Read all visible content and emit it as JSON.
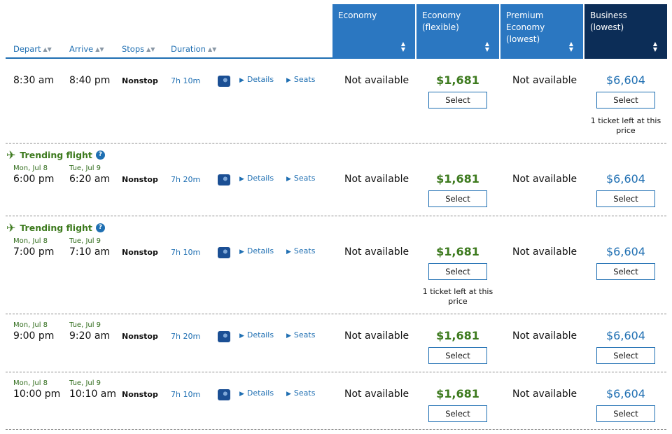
{
  "columns": {
    "depart": "Depart",
    "arrive": "Arrive",
    "stops": "Stops",
    "duration": "Duration"
  },
  "cabins": [
    {
      "label": "Economy"
    },
    {
      "label": "Economy (flexible)"
    },
    {
      "label": "Premium Economy (lowest)"
    },
    {
      "label": "Business (lowest)"
    }
  ],
  "trending_label": "Trending flight",
  "details_label": "Details",
  "seats_label": "Seats",
  "select_label": "Select",
  "not_available": "Not available",
  "flights": [
    {
      "depart_date": "",
      "depart": "8:30 am",
      "arrive_date": "",
      "arrive": "8:40 pm",
      "stops": "Nonstop",
      "duration": "7h 10m",
      "flex_price": "$1,681",
      "business_price": "$6,604",
      "trending": false,
      "flex_note": "",
      "business_note": "1 ticket left at this price"
    },
    {
      "depart_date": "Mon, Jul 8",
      "depart": "6:00 pm",
      "arrive_date": "Tue, Jul 9",
      "arrive": "6:20 am",
      "stops": "Nonstop",
      "duration": "7h 20m",
      "flex_price": "$1,681",
      "business_price": "$6,604",
      "trending": true,
      "flex_note": "",
      "business_note": ""
    },
    {
      "depart_date": "Mon, Jul 8",
      "depart": "7:00 pm",
      "arrive_date": "Tue, Jul 9",
      "arrive": "7:10 am",
      "stops": "Nonstop",
      "duration": "7h 10m",
      "flex_price": "$1,681",
      "business_price": "$6,604",
      "trending": true,
      "flex_note": "1 ticket left at this price",
      "business_note": ""
    },
    {
      "depart_date": "Mon, Jul 8",
      "depart": "9:00 pm",
      "arrive_date": "Tue, Jul 9",
      "arrive": "9:20 am",
      "stops": "Nonstop",
      "duration": "7h 20m",
      "flex_price": "$1,681",
      "business_price": "$6,604",
      "trending": false,
      "flex_note": "",
      "business_note": ""
    },
    {
      "depart_date": "Mon, Jul 8",
      "depart": "10:00 pm",
      "arrive_date": "Tue, Jul 9",
      "arrive": "10:10 am",
      "stops": "Nonstop",
      "duration": "7h 10m",
      "flex_price": "$1,681",
      "business_price": "$6,604",
      "trending": false,
      "flex_note": "",
      "business_note": ""
    }
  ]
}
